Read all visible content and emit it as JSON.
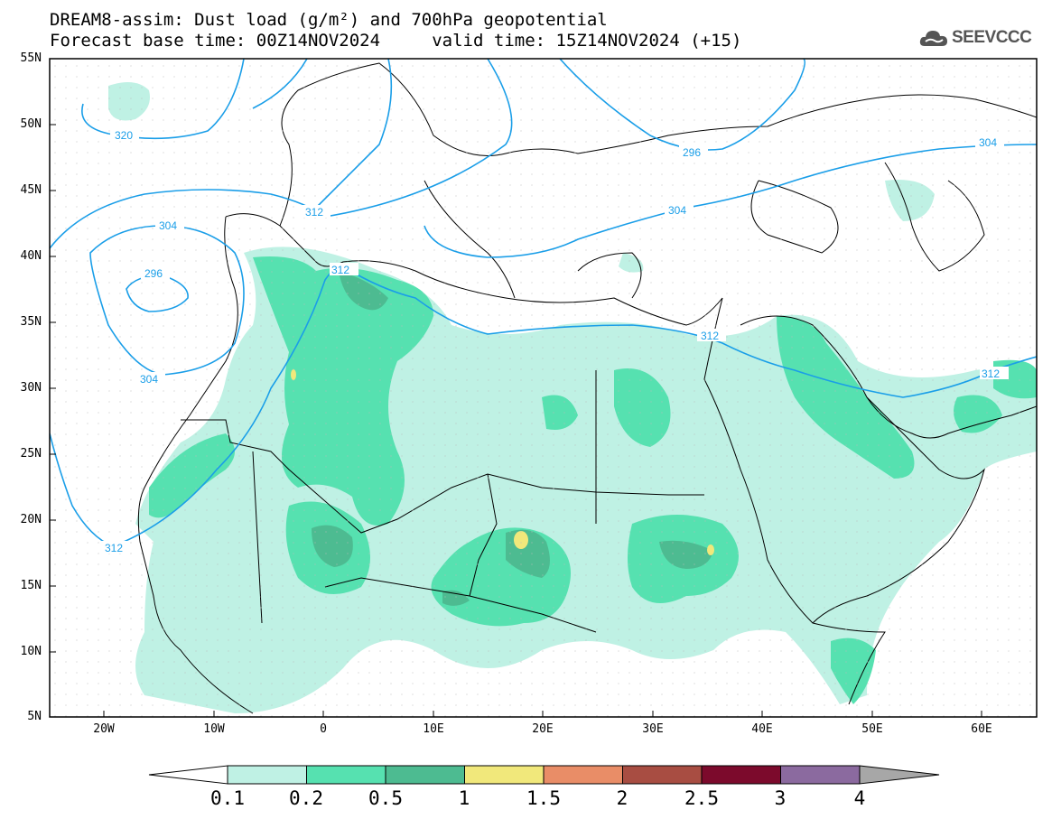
{
  "header": {
    "title_line1": "DREAM8-assim: Dust load (g/m²) and 700hPa geopotential",
    "title_line2": "Forecast base time: 00Z14NOV2024     valid time: 15Z14NOV2024 (+15)",
    "logo_text": "SEEVCCC",
    "logo_icon": "cloud-icon"
  },
  "map": {
    "lat_ticks": [
      "55N",
      "50N",
      "45N",
      "40N",
      "35N",
      "30N",
      "25N",
      "20N",
      "15N",
      "10N",
      "5N"
    ],
    "lon_ticks": [
      "20W",
      "10W",
      "0",
      "10E",
      "20E",
      "30E",
      "40E",
      "50E",
      "60E"
    ],
    "contour_labels": [
      "320",
      "312",
      "304",
      "296",
      "304",
      "296",
      "312",
      "304",
      "312",
      "312",
      "312",
      "304"
    ]
  },
  "colorbar": {
    "labels": [
      "0.1",
      "0.2",
      "0.5",
      "1",
      "1.5",
      "2",
      "2.5",
      "3",
      "4"
    ],
    "colors": [
      "#ffffff",
      "#bff1e4",
      "#56e1b0",
      "#4dbb91",
      "#f1e87b",
      "#e98d67",
      "#a84d42",
      "#7c0a2c",
      "#8b6a9f",
      "#a7a7a7"
    ]
  },
  "colors": {
    "contour": "#1a9ee8",
    "dust_light": "#bff1e4",
    "dust_mid": "#56e1b0",
    "dust_dark": "#4dbb91",
    "dust_yellow": "#f1e87b"
  }
}
